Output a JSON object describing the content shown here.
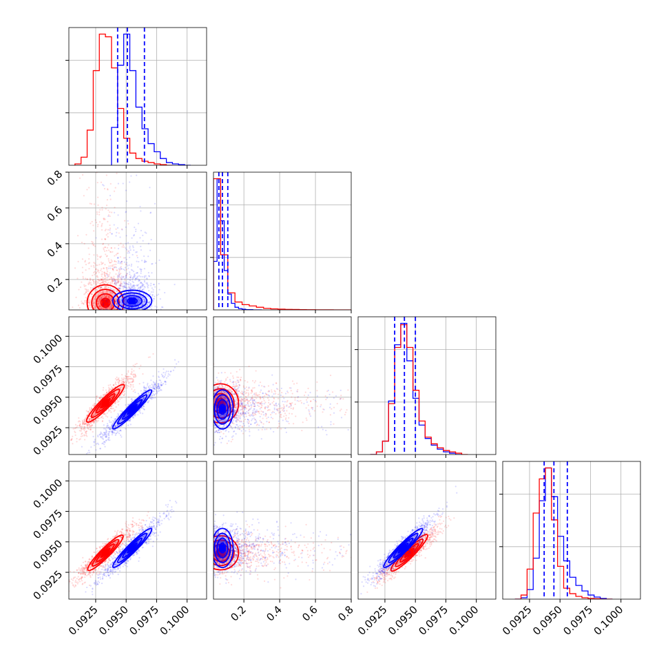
{
  "colors": {
    "series_red": "#ff0000",
    "series_blue": "#0000ff",
    "grid": "#b0b0b0",
    "axis": "#000000"
  },
  "chart_data": {
    "type": "corner",
    "parameters": [
      "p1",
      "p2",
      "p3",
      "p4"
    ],
    "ranges": {
      "p1": [
        0.0903,
        0.1016
      ],
      "p2": [
        0.03,
        0.8
      ],
      "p3": [
        0.0903,
        0.1016
      ],
      "p4": [
        0.0903,
        0.1016
      ]
    },
    "tick_labels": {
      "p1": [
        "0.0925",
        "0.0950",
        "0.0975",
        "0.1000"
      ],
      "p2": [
        "0.2",
        "0.4",
        "0.6",
        "0.8"
      ],
      "p3": [
        "0.0925",
        "0.0950",
        "0.0975",
        "0.1000"
      ],
      "p4": [
        "0.0925",
        "0.0950",
        "0.0975",
        "0.1000"
      ]
    },
    "tick_values": {
      "p1": [
        0.0925,
        0.095,
        0.0975,
        0.1
      ],
      "p2": [
        0.2,
        0.4,
        0.6,
        0.8
      ],
      "p3": [
        0.0925,
        0.095,
        0.0975,
        0.1
      ],
      "p4": [
        0.0925,
        0.095,
        0.0975,
        0.1
      ]
    },
    "grid": true,
    "series": [
      {
        "color": "red",
        "means": [
          0.0933,
          0.07,
          0.0945,
          0.0941
        ],
        "sigmas": [
          0.00075,
          0.05,
          0.0008,
          0.0007
        ],
        "correlations": {
          "p1_p3": 0.93,
          "p1_p4": 0.93,
          "p3_p4": 0.93,
          "p1_p2": 0.0,
          "p2_p3": 0.0,
          "p2_p4": 0.0
        },
        "histograms": {
          "p1": {
            "edges": [
              0.0908,
              0.0913,
              0.0918,
              0.0923,
              0.0928,
              0.0933,
              0.0938,
              0.0943,
              0.0948,
              0.0953,
              0.0958,
              0.0963,
              0.0968,
              0.0973,
              0.0978,
              0.0983,
              0.0988
            ],
            "counts": [
              0.01,
              0.06,
              0.26,
              0.7,
              0.97,
              0.95,
              0.72,
              0.42,
              0.2,
              0.09,
              0.05,
              0.03,
              0.02,
              0.01,
              0.005,
              0.0
            ]
          },
          "p2": {
            "edges": [
              0.03,
              0.07,
              0.11,
              0.15,
              0.19,
              0.23,
              0.27,
              0.31,
              0.35,
              0.39,
              0.43,
              0.47,
              0.51,
              0.55,
              0.6,
              0.7,
              0.8
            ],
            "counts": [
              1.0,
              0.42,
              0.13,
              0.06,
              0.04,
              0.03,
              0.02,
              0.012,
              0.008,
              0.006,
              0.004,
              0.003,
              0.002,
              0.001,
              0.0005,
              0.0
            ]
          },
          "p3": {
            "edges": [
              0.0913,
              0.0918,
              0.0923,
              0.0928,
              0.0933,
              0.0938,
              0.0943,
              0.0948,
              0.0953,
              0.0958,
              0.0963,
              0.0968,
              0.0973,
              0.0978,
              0.0983,
              0.0988,
              0.0993
            ],
            "counts": [
              0.0,
              0.02,
              0.1,
              0.38,
              0.8,
              0.97,
              0.8,
              0.48,
              0.25,
              0.13,
              0.08,
              0.05,
              0.03,
              0.02,
              0.01,
              0.0
            ]
          },
          "p4": {
            "edges": [
              0.0913,
              0.0918,
              0.0923,
              0.0928,
              0.0933,
              0.0938,
              0.0943,
              0.0948,
              0.0953,
              0.0958,
              0.0963,
              0.0968,
              0.0973,
              0.0978,
              0.0983,
              0.0988,
              0.0993
            ],
            "counts": [
              0.0,
              0.03,
              0.22,
              0.63,
              0.88,
              0.96,
              0.58,
              0.24,
              0.08,
              0.04,
              0.02,
              0.01,
              0.005,
              0.003,
              0.0,
              0.0
            ]
          }
        }
      },
      {
        "color": "blue",
        "means": [
          0.0955,
          0.08,
          0.094,
          0.0945
        ],
        "sigmas": [
          0.0008,
          0.03,
          0.0008,
          0.0008
        ],
        "correlations": {
          "p1_p3": 0.95,
          "p1_p4": 0.95,
          "p3_p4": 0.95,
          "p1_p2": 0.0,
          "p2_p3": 0.0,
          "p2_p4": 0.0
        },
        "histograms": {
          "p1": {
            "edges": [
              0.0938,
              0.0943,
              0.0948,
              0.0953,
              0.0958,
              0.0963,
              0.0968,
              0.0973,
              0.0978,
              0.0983,
              0.0988,
              0.0993,
              0.0998,
              0.1003
            ],
            "counts": [
              0.28,
              0.74,
              0.97,
              0.7,
              0.43,
              0.27,
              0.16,
              0.1,
              0.05,
              0.02,
              0.01,
              0.005,
              0.0
            ]
          },
          "p2": {
            "edges": [
              0.03,
              0.05,
              0.07,
              0.09,
              0.11,
              0.13,
              0.15,
              0.17,
              0.19,
              0.21,
              0.25,
              0.3
            ],
            "counts": [
              0.37,
              1.0,
              0.68,
              0.3,
              0.12,
              0.05,
              0.02,
              0.01,
              0.005,
              0.002,
              0.0
            ]
          },
          "p3": {
            "edges": [
              0.0913,
              0.0918,
              0.0923,
              0.0928,
              0.0933,
              0.0938,
              0.0943,
              0.0948,
              0.0953,
              0.0958,
              0.0963,
              0.0968,
              0.0973,
              0.0978,
              0.0983,
              0.0988
            ],
            "counts": [
              0.0,
              0.02,
              0.1,
              0.4,
              0.82,
              0.98,
              0.7,
              0.42,
              0.22,
              0.12,
              0.07,
              0.04,
              0.02,
              0.01,
              0.0
            ]
          },
          "p4": {
            "edges": [
              0.0913,
              0.0918,
              0.0923,
              0.0928,
              0.0933,
              0.0938,
              0.0943,
              0.0948,
              0.0953,
              0.0958,
              0.0963,
              0.0968,
              0.0973,
              0.0978,
              0.0983,
              0.0988,
              0.0993
            ],
            "counts": [
              0.0,
              0.01,
              0.07,
              0.3,
              0.72,
              0.96,
              0.75,
              0.46,
              0.28,
              0.16,
              0.1,
              0.06,
              0.03,
              0.015,
              0.005,
              0.0
            ]
          }
        }
      }
    ],
    "quantile_lines": {
      "color": "blue",
      "p1": [
        0.0943,
        0.0951,
        0.0965
      ],
      "p2": [
        0.06,
        0.08,
        0.11
      ],
      "p3": [
        0.0933,
        0.0941,
        0.095
      ],
      "p4": [
        0.0937,
        0.0945,
        0.0956
      ]
    }
  }
}
